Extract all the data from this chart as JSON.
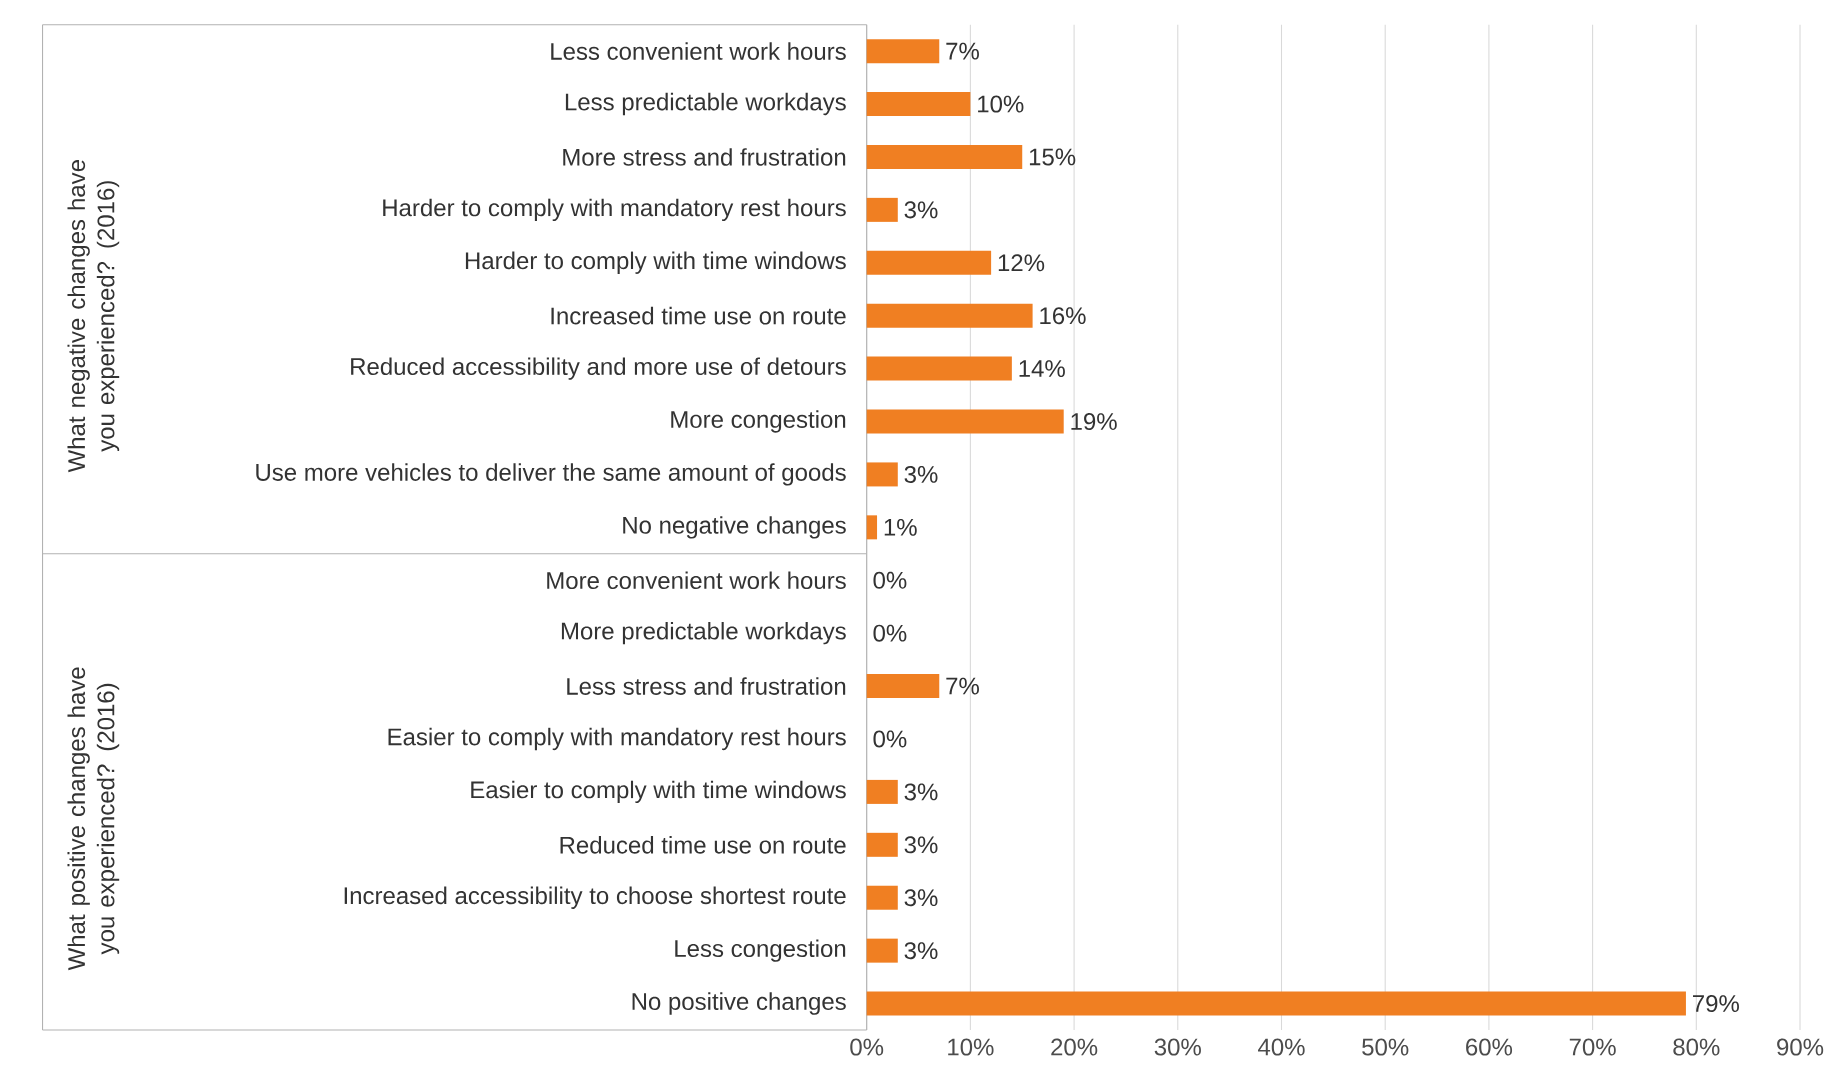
{
  "chart_data": {
    "type": "bar",
    "orientation": "horizontal",
    "color": "#f07f22",
    "categories": [
      "Less convenient work hours",
      "Less predictable workdays",
      "More stress and frustration",
      "Harder to comply with mandatory rest hours",
      "Harder to comply with time windows",
      "Increased time use on route",
      "Reduced accessibility and more use of detours",
      "More congestion",
      "Use more vehicles to deliver the same amount of goods",
      "No negative changes",
      "More convenient work hours",
      "More predictable workdays",
      "Less stress and frustration",
      "Easier to comply with mandatory rest hours",
      "Easier to comply with time windows",
      "Reduced time use on route",
      "Increased accessibility to choose shortest route",
      "Less congestion",
      "No positive changes"
    ],
    "values": [
      7,
      10,
      15,
      3,
      12,
      16,
      14,
      19,
      3,
      1,
      0,
      0,
      7,
      0,
      3,
      3,
      3,
      3,
      79
    ],
    "value_labels": [
      "7%",
      "10%",
      "15%",
      "3%",
      "12%",
      "16%",
      "14%",
      "19%",
      "3%",
      "1%",
      "0%",
      "0%",
      "7%",
      "0%",
      "3%",
      "3%",
      "3%",
      "3%",
      "79%"
    ],
    "annotations": [
      "What negative changes have you experienced? (2016)",
      "What positive changes have you experienced? (2016)"
    ],
    "xlim": [
      0,
      90
    ],
    "xticks": [
      {
        "value": 0,
        "label": "0%"
      },
      {
        "value": 10,
        "label": "10%"
      },
      {
        "value": 20,
        "label": "20%"
      },
      {
        "value": 30,
        "label": "30%"
      },
      {
        "value": 40,
        "label": "40%"
      },
      {
        "value": 50,
        "label": "50%"
      },
      {
        "value": 60,
        "label": "60%"
      },
      {
        "value": 70,
        "label": "70%"
      },
      {
        "value": 80,
        "label": "80%"
      },
      {
        "value": 90,
        "label": "90%"
      }
    ],
    "grid": "x"
  }
}
